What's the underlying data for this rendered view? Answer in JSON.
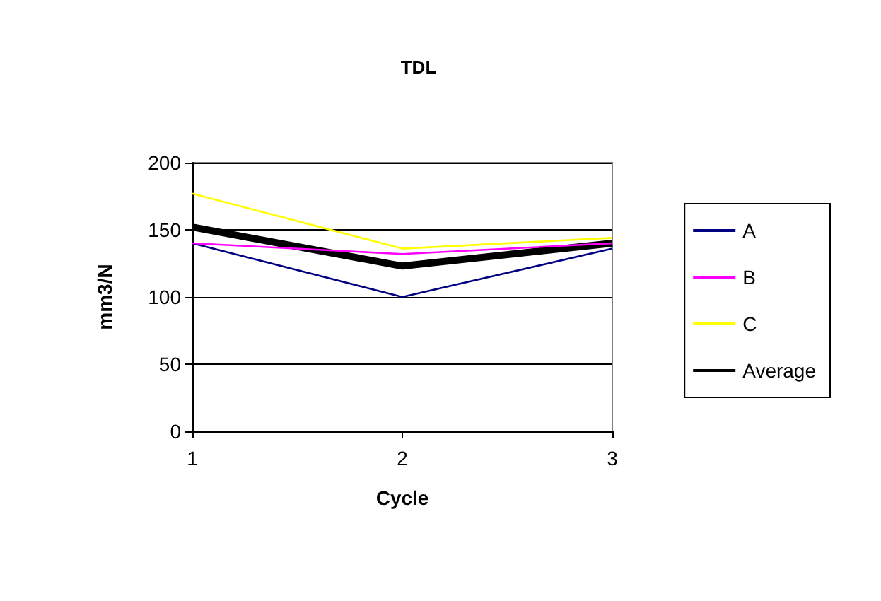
{
  "chart_data": {
    "type": "line",
    "title": "TDL",
    "xlabel": "Cycle",
    "ylabel": "mm3/N",
    "categories": [
      "1",
      "2",
      "3"
    ],
    "series": [
      {
        "name": "A",
        "color": "#000080",
        "values": [
          140,
          100,
          136
        ]
      },
      {
        "name": "B",
        "color": "#ff00ff",
        "values": [
          140,
          132,
          140
        ]
      },
      {
        "name": "C",
        "color": "#ffff00",
        "values": [
          177,
          136,
          144
        ]
      },
      {
        "name": "Average",
        "color": "#000000",
        "values": [
          152,
          123,
          140
        ]
      }
    ],
    "ylim": [
      0,
      200
    ],
    "yticks": [
      0,
      50,
      100,
      150,
      200
    ],
    "grid": "y",
    "legend": "right",
    "marker": "none"
  }
}
